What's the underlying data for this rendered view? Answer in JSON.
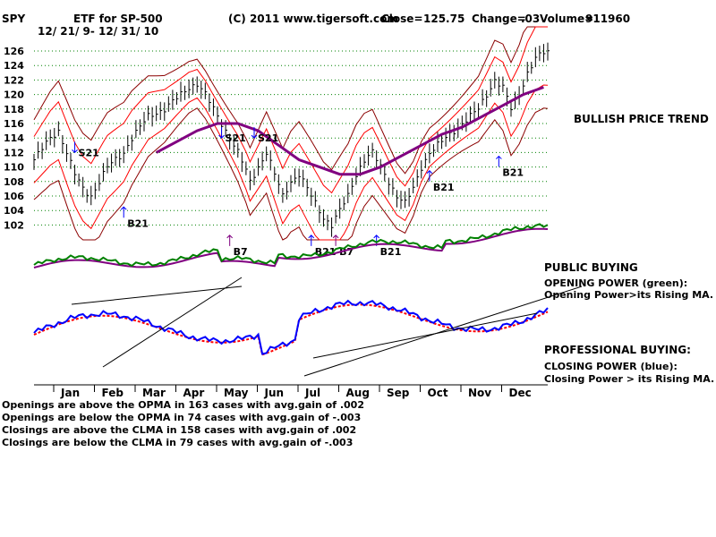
{
  "header": {
    "symbol": "SPY",
    "name": "ETF for SP-500",
    "copyright": "(C) 2011 www.tigersoft.com",
    "close_label": "Close=",
    "close_value": "125.75",
    "change_label": "Change=",
    "change_value": ".03",
    "volume_label": "Volume=",
    "volume_value": "911960",
    "date_range": "12/ 21/ 9- 12/ 31/ 10"
  },
  "notes": {
    "trend": "BULLISH PRICE TREND",
    "public_title": "PUBLIC BUYING",
    "opening_title": "OPENING POWER (green):",
    "opening_desc": "Opening Power>its Rising MA.",
    "prof_title": "PROFESSIONAL BUYING:",
    "closing_title": "CLOSING POWER (blue):",
    "closing_desc": "Closing Power > its Rising MA."
  },
  "stats": [
    "Openings are above the OPMA in  163 cases with avg.gain of  .002",
    "Openings are below the OPMA in  74 cases with avg.gain of -.003",
    "Closings are above the CLMA in  158 cases with avg.gain of  .002",
    "Closings are below the CLMA in  79 cases with avg.gain of -.003"
  ],
  "colors": {
    "price_bars": "#000000",
    "ma": "#800080",
    "band_outer": "#8b0000",
    "band_inner": "#ff0000",
    "opening_power": "#008000",
    "opening_ma": "#800080",
    "closing_power": "#0000ff",
    "closing_ma": "#ff0000",
    "sell_signal": "#0000ff",
    "buy_signal": "#0000ff",
    "b7_signal": "#800080",
    "grid": "#008000"
  },
  "chart_data": {
    "type": "line",
    "title": "ETF for SP-500",
    "ylim": [
      100,
      126
    ],
    "y_ticks": [
      102,
      104,
      106,
      108,
      110,
      112,
      114,
      116,
      118,
      120,
      122,
      124,
      126
    ],
    "months": [
      "Jan",
      "Feb",
      "Mar",
      "Apr",
      "May",
      "Jun",
      "Jul",
      "Aug",
      "Sep",
      "Oct",
      "Nov",
      "Dec"
    ],
    "grid": true,
    "price": {
      "name": "SPY",
      "x": [
        0,
        2,
        4,
        6,
        8,
        10,
        12,
        14,
        16,
        18,
        20,
        22,
        24,
        26,
        28,
        30,
        32,
        34,
        36,
        38,
        40,
        42,
        44,
        46,
        48,
        50,
        52
      ],
      "close": [
        111,
        112.5,
        114,
        115,
        112,
        109,
        107,
        106,
        108,
        110,
        111,
        112,
        114,
        115.5,
        117,
        117.5,
        118,
        119,
        120,
        121,
        121.5,
        120,
        118,
        116,
        114,
        112,
        109.5
      ],
      "x2": [
        53,
        55,
        57,
        59,
        61,
        63,
        65,
        67,
        69,
        71,
        73,
        75,
        77,
        79,
        81,
        83,
        85,
        87,
        89,
        91,
        93,
        95,
        97,
        99,
        101,
        103,
        105,
        107
      ],
      "close2": [
        108,
        110,
        112,
        109,
        106,
        108,
        109,
        107,
        105,
        103,
        102,
        104,
        106,
        109,
        111,
        112,
        110,
        108,
        106,
        105,
        107,
        110,
        112,
        113,
        114,
        115,
        116,
        117
      ],
      "x3": [
        109,
        111,
        113,
        115,
        117,
        119,
        121,
        123,
        125
      ],
      "close3": [
        118,
        120,
        122,
        121,
        118,
        120,
        123,
        125,
        125.75
      ]
    },
    "moving_average": {
      "name": "MA",
      "x": [
        30,
        35,
        40,
        45,
        50,
        55,
        60,
        65,
        70,
        75,
        80,
        85,
        90,
        95,
        100,
        105,
        110,
        115,
        120,
        125
      ],
      "values": [
        112,
        113.5,
        115,
        116,
        116,
        115,
        113,
        111,
        110,
        109,
        109,
        110,
        111.5,
        113,
        114.5,
        115.5,
        117,
        118.5,
        120,
        121
      ]
    },
    "signals": [
      {
        "label": "S21",
        "kind": "sell"
      },
      {
        "label": "B21",
        "kind": "buy"
      },
      {
        "label": "S21",
        "kind": "sell"
      },
      {
        "label": "S21",
        "kind": "sell"
      },
      {
        "label": "B7",
        "kind": "buy"
      },
      {
        "label": "B21",
        "kind": "buy"
      },
      {
        "label": "B7",
        "kind": "buy"
      },
      {
        "label": "B21",
        "kind": "buy"
      },
      {
        "label": "B21",
        "kind": "buy"
      },
      {
        "label": "B21",
        "kind": "buy"
      }
    ]
  }
}
